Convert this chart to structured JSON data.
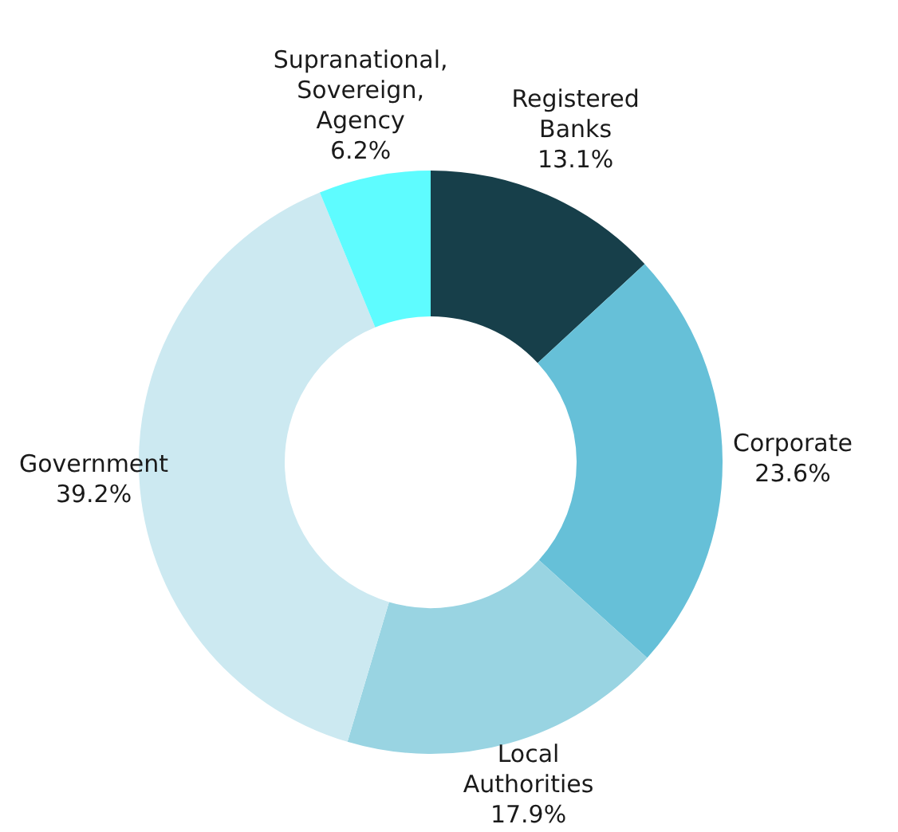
{
  "chart_data": {
    "type": "donut",
    "categories": [
      "Registered Banks",
      "Corporate",
      "Local Authorities",
      "Government",
      "Supranational, Sovereign, Agency"
    ],
    "values": [
      13.1,
      23.6,
      17.9,
      39.2,
      6.2
    ],
    "value_labels": [
      "13.1%",
      "23.6%",
      "17.9%",
      "39.2%",
      "6.2%"
    ],
    "colors": [
      "#173f4a",
      "#66c0d8",
      "#99d4e2",
      "#cce9f1",
      "#5efcff"
    ],
    "legend": false
  }
}
